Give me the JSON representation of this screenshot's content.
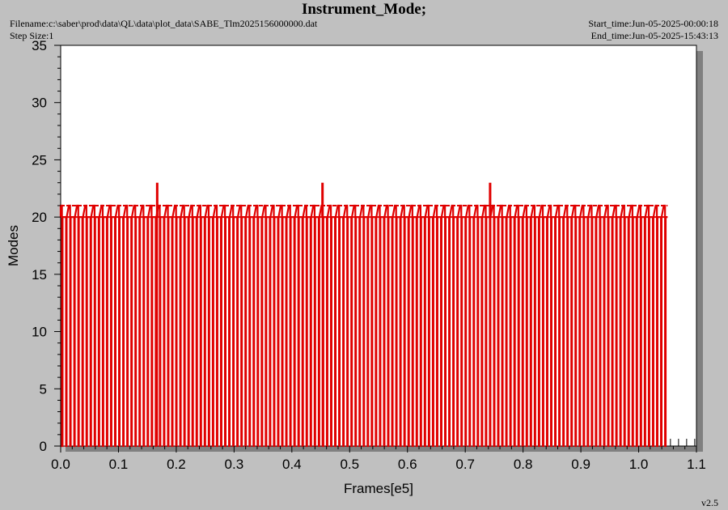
{
  "header": {
    "title": "Instrument_Mode;",
    "filename": "Filename:c:\\saber\\prod\\data\\QL\\data\\plot_data\\SABE_Tlm2025156000000.dat",
    "step_size": "Step Size:1",
    "start_time": "Start_time:Jun-05-2025-00:00:18",
    "end_time": "End_time:Jun-05-2025-15:43:13",
    "version": "v2.5"
  },
  "colors": {
    "series": "#e00000",
    "plot_bg": "#ffffff",
    "page_bg": "#c0c0c0",
    "shadow": "#808080"
  },
  "chart_data": {
    "type": "line",
    "title": "Instrument_Mode;",
    "xlabel": "Frames[e5]",
    "ylabel": "Modes",
    "xlim": [
      0.0,
      1.1
    ],
    "ylim": [
      0,
      35
    ],
    "x_ticks": [
      "0.0",
      "0.1",
      "0.2",
      "0.3",
      "0.4",
      "0.5",
      "0.6",
      "0.7",
      "0.8",
      "0.9",
      "1.0",
      "1.1"
    ],
    "y_ticks": [
      "0",
      "5",
      "10",
      "15",
      "20",
      "25",
      "30",
      "35"
    ],
    "grid": false,
    "series": [
      {
        "pattern": "periodic oscillation between 0 and 20/21",
        "x_start": 0.0,
        "x_end": 1.05,
        "baseline": 20,
        "high": 21,
        "low": 0,
        "period": 0.00705,
        "spikes": [
          {
            "x": 0.167,
            "y": 23
          },
          {
            "x": 0.453,
            "y": 23
          },
          {
            "x": 0.743,
            "y": 23
          }
        ]
      }
    ]
  }
}
